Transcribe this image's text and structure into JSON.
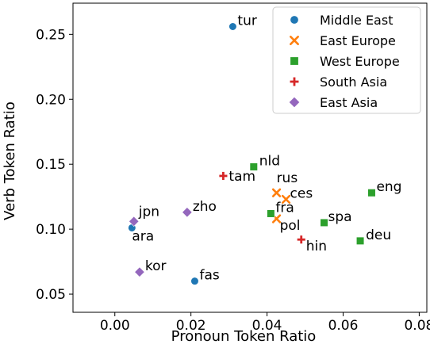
{
  "chart_data": {
    "type": "scatter",
    "title": "",
    "xlabel": "Pronoun Token Ratio",
    "ylabel": "Verb Token Ratio",
    "xlim": [
      -0.011,
      0.082
    ],
    "ylim": [
      0.036,
      0.274
    ],
    "xticks": [
      0.0,
      0.02,
      0.04,
      0.06,
      0.08
    ],
    "xtick_labels": [
      "0.00",
      "0.02",
      "0.04",
      "0.06",
      "0.08"
    ],
    "yticks": [
      0.05,
      0.1,
      0.15,
      0.2,
      0.25
    ],
    "ytick_labels": [
      "0.05",
      "0.10",
      "0.15",
      "0.20",
      "0.25"
    ],
    "grid": false,
    "legend_position": "top-right",
    "series": [
      {
        "name": "Middle East",
        "marker": "circle",
        "color": "#1f77b4",
        "points": [
          {
            "label": "tur",
            "x": 0.031,
            "y": 0.256
          },
          {
            "label": "ara",
            "x": 0.0045,
            "y": 0.101
          },
          {
            "label": "fas",
            "x": 0.021,
            "y": 0.06
          }
        ]
      },
      {
        "name": "East Europe",
        "marker": "x",
        "color": "#ff7f0e",
        "points": [
          {
            "label": "rus",
            "x": 0.0425,
            "y": 0.128
          },
          {
            "label": "ces",
            "x": 0.045,
            "y": 0.123
          },
          {
            "label": "pol",
            "x": 0.0425,
            "y": 0.108
          }
        ]
      },
      {
        "name": "West Europe",
        "marker": "square",
        "color": "#2ca02c",
        "points": [
          {
            "label": "nld",
            "x": 0.0365,
            "y": 0.148
          },
          {
            "label": "eng",
            "x": 0.0675,
            "y": 0.128
          },
          {
            "label": "fra",
            "x": 0.041,
            "y": 0.112
          },
          {
            "label": "spa",
            "x": 0.055,
            "y": 0.105
          },
          {
            "label": "deu",
            "x": 0.0645,
            "y": 0.091
          }
        ]
      },
      {
        "name": "South Asia",
        "marker": "plus",
        "color": "#d62728",
        "points": [
          {
            "label": "tam",
            "x": 0.0285,
            "y": 0.141
          },
          {
            "label": "hin",
            "x": 0.049,
            "y": 0.092
          }
        ]
      },
      {
        "name": "East Asia",
        "marker": "diamond",
        "color": "#9467bd",
        "points": [
          {
            "label": "jpn",
            "x": 0.005,
            "y": 0.106
          },
          {
            "label": "zho",
            "x": 0.019,
            "y": 0.113
          },
          {
            "label": "kor",
            "x": 0.0065,
            "y": 0.067
          }
        ]
      }
    ]
  }
}
